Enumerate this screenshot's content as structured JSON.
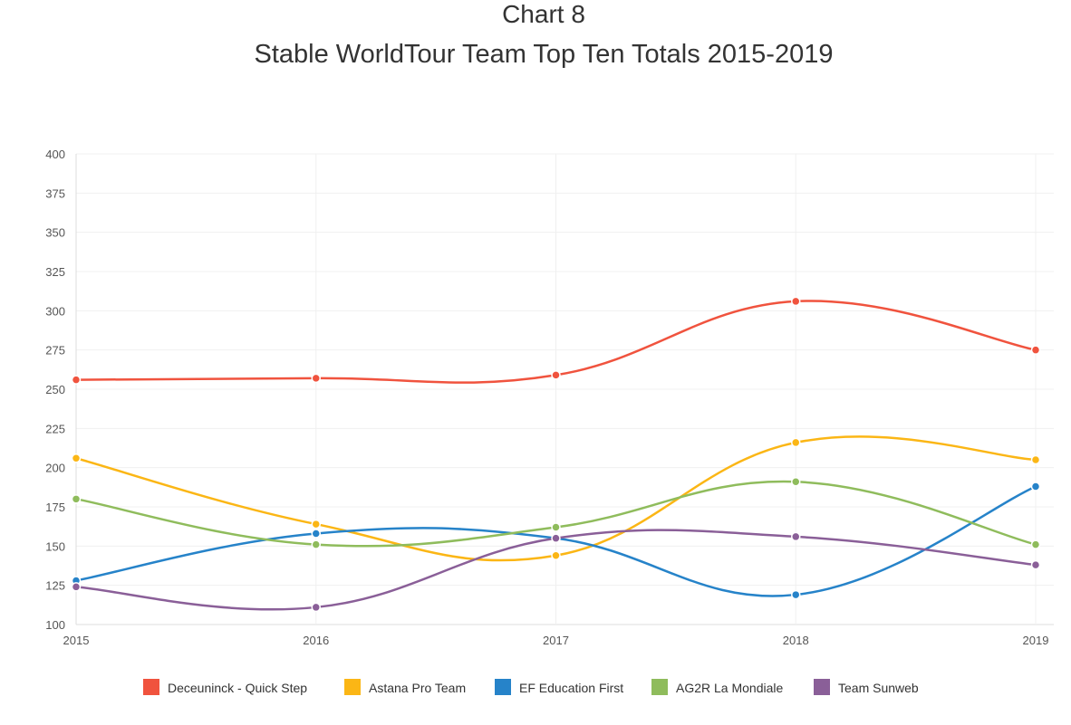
{
  "chart_data": {
    "type": "line",
    "title": "Chart 8",
    "subtitle": "Stable WorldTour Team Top Ten Totals 2015-2019",
    "xlabel": "",
    "ylabel": "",
    "categories": [
      "2015",
      "2016",
      "2017",
      "2018",
      "2019"
    ],
    "ylim": [
      100,
      400
    ],
    "yticks": [
      100,
      125,
      150,
      175,
      200,
      225,
      250,
      275,
      300,
      325,
      350,
      375,
      400
    ],
    "grid": true,
    "legend_position": "bottom",
    "series": [
      {
        "name": "Deceuninck - Quick Step",
        "color": "#f0533e",
        "values": [
          256,
          257,
          259,
          306,
          275
        ]
      },
      {
        "name": "Astana Pro Team",
        "color": "#fbb615",
        "values": [
          206,
          164,
          144,
          216,
          205
        ]
      },
      {
        "name": "EF Education First",
        "color": "#2683c9",
        "values": [
          128,
          158,
          155,
          119,
          188
        ]
      },
      {
        "name": "AG2R La Mondiale",
        "color": "#8fbc5c",
        "values": [
          180,
          151,
          162,
          191,
          151
        ]
      },
      {
        "name": "Team Sunweb",
        "color": "#8a5f98",
        "values": [
          124,
          111,
          155,
          156,
          138
        ]
      }
    ]
  }
}
